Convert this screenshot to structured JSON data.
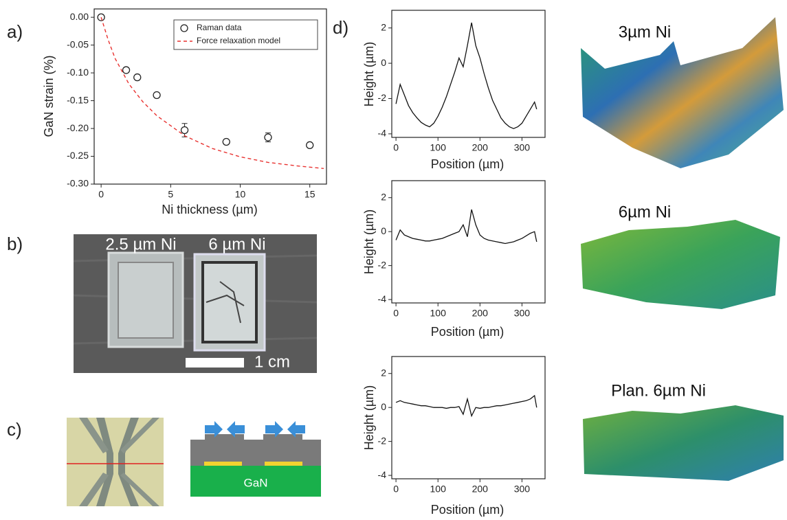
{
  "panel_labels": [
    "a)",
    "b)",
    "c)",
    "d)"
  ],
  "chart_data": [
    {
      "type": "scatter",
      "x_label": "Ni thickness (µm)",
      "y_label": "GaN strain (%)",
      "xlim": [
        -0.5,
        16.2
      ],
      "ylim": [
        -0.3,
        0.015
      ],
      "xticks": [
        0,
        5,
        10,
        15
      ],
      "yticks": [
        {
          "value": 0,
          "label": "0.00"
        },
        {
          "value": -0.05,
          "label": "-0.05"
        },
        {
          "value": -0.1,
          "label": "-0.10"
        },
        {
          "value": -0.15,
          "label": "-0.15"
        },
        {
          "value": -0.2,
          "label": "-0.20"
        },
        {
          "value": -0.25,
          "label": "-0.25"
        },
        {
          "value": -0.3,
          "label": "-0.30"
        }
      ],
      "legend": "upper right",
      "series": [
        {
          "name": "Raman data",
          "style": "open-circle",
          "color": "#222222",
          "x": [
            0,
            1.8,
            2.6,
            4,
            6,
            9,
            12,
            15
          ],
          "values": [
            0,
            -0.095,
            -0.108,
            -0.14,
            -0.203,
            -0.224,
            -0.216,
            -0.23
          ],
          "errors": [
            null,
            null,
            null,
            null,
            0.012,
            null,
            0.008,
            null
          ]
        },
        {
          "name": "Force relaxation model",
          "style": "dashed-line",
          "color": "#e8312f",
          "x": [
            0,
            0.5,
            1,
            2,
            3,
            4,
            6,
            8,
            10,
            12,
            14,
            16
          ],
          "values": [
            0,
            -0.04,
            -0.074,
            -0.12,
            -0.152,
            -0.177,
            -0.213,
            -0.236,
            -0.251,
            -0.261,
            -0.267,
            -0.272
          ]
        }
      ]
    },
    {
      "type": "line",
      "x_label": "Position (µm)",
      "y_label": "Height (µm)",
      "color": "#111111",
      "xlim": [
        -10,
        355
      ],
      "ylim": [
        -4.2,
        3
      ],
      "xticks": [
        0,
        100,
        200,
        300
      ],
      "yticks": [
        -4,
        -2,
        0,
        2
      ],
      "x": [
        0,
        10,
        20,
        30,
        40,
        50,
        60,
        70,
        80,
        90,
        100,
        110,
        120,
        130,
        140,
        150,
        160,
        170,
        180,
        190,
        200,
        210,
        220,
        230,
        240,
        250,
        260,
        270,
        280,
        290,
        300,
        310,
        320,
        330,
        335
      ],
      "values": [
        -2.3,
        -1.2,
        -1.8,
        -2.4,
        -2.8,
        -3.1,
        -3.35,
        -3.5,
        -3.6,
        -3.4,
        -3.0,
        -2.5,
        -1.9,
        -1.2,
        -0.5,
        0.3,
        -0.2,
        1.0,
        2.3,
        1.0,
        0.3,
        -0.6,
        -1.4,
        -2.1,
        -2.6,
        -3.1,
        -3.4,
        -3.6,
        -3.7,
        -3.6,
        -3.4,
        -3.0,
        -2.6,
        -2.2,
        -2.6
      ]
    },
    {
      "type": "line",
      "x_label": "Position (µm)",
      "y_label": "Height (µm)",
      "color": "#111111",
      "xlim": [
        -10,
        355
      ],
      "ylim": [
        -4.2,
        3
      ],
      "xticks": [
        0,
        100,
        200,
        300
      ],
      "yticks": [
        -4,
        -2,
        0,
        2
      ],
      "x": [
        0,
        10,
        20,
        30,
        40,
        50,
        60,
        70,
        80,
        90,
        100,
        110,
        120,
        130,
        140,
        150,
        160,
        170,
        180,
        190,
        200,
        210,
        220,
        230,
        240,
        250,
        260,
        270,
        280,
        290,
        300,
        310,
        320,
        330,
        335
      ],
      "values": [
        -0.5,
        0.1,
        -0.2,
        -0.3,
        -0.4,
        -0.45,
        -0.5,
        -0.55,
        -0.55,
        -0.5,
        -0.45,
        -0.4,
        -0.3,
        -0.2,
        -0.1,
        0.0,
        0.4,
        -0.3,
        1.3,
        0.4,
        -0.2,
        -0.4,
        -0.5,
        -0.55,
        -0.6,
        -0.65,
        -0.7,
        -0.65,
        -0.6,
        -0.5,
        -0.4,
        -0.25,
        -0.1,
        0.0,
        -0.6
      ]
    },
    {
      "type": "line",
      "x_label": "Position (µm)",
      "y_label": "Height (µm)",
      "color": "#111111",
      "xlim": [
        -10,
        355
      ],
      "ylim": [
        -4.2,
        3
      ],
      "xticks": [
        0,
        100,
        200,
        300
      ],
      "yticks": [
        -4,
        -2,
        0,
        2
      ],
      "x": [
        0,
        10,
        20,
        30,
        40,
        50,
        60,
        70,
        80,
        90,
        100,
        110,
        120,
        130,
        140,
        150,
        160,
        170,
        180,
        190,
        200,
        210,
        220,
        230,
        240,
        250,
        260,
        270,
        280,
        290,
        300,
        310,
        320,
        330,
        335
      ],
      "values": [
        0.3,
        0.4,
        0.3,
        0.25,
        0.2,
        0.15,
        0.1,
        0.1,
        0.05,
        0.0,
        0.0,
        0.0,
        -0.05,
        0.0,
        0.0,
        0.05,
        -0.4,
        0.5,
        -0.5,
        0.0,
        -0.05,
        0.0,
        0.0,
        0.05,
        0.1,
        0.1,
        0.15,
        0.2,
        0.25,
        0.3,
        0.35,
        0.4,
        0.5,
        0.7,
        0.0
      ]
    }
  ],
  "photo_b": {
    "labels": [
      "2.5 µm Ni",
      "6 µm Ni"
    ],
    "scale_bar": "1 cm"
  },
  "schematic_c": {
    "substrate": "GaN"
  },
  "surfaces_d": [
    "3µm Ni",
    "6µm Ni",
    "Plan. 6µm Ni"
  ]
}
